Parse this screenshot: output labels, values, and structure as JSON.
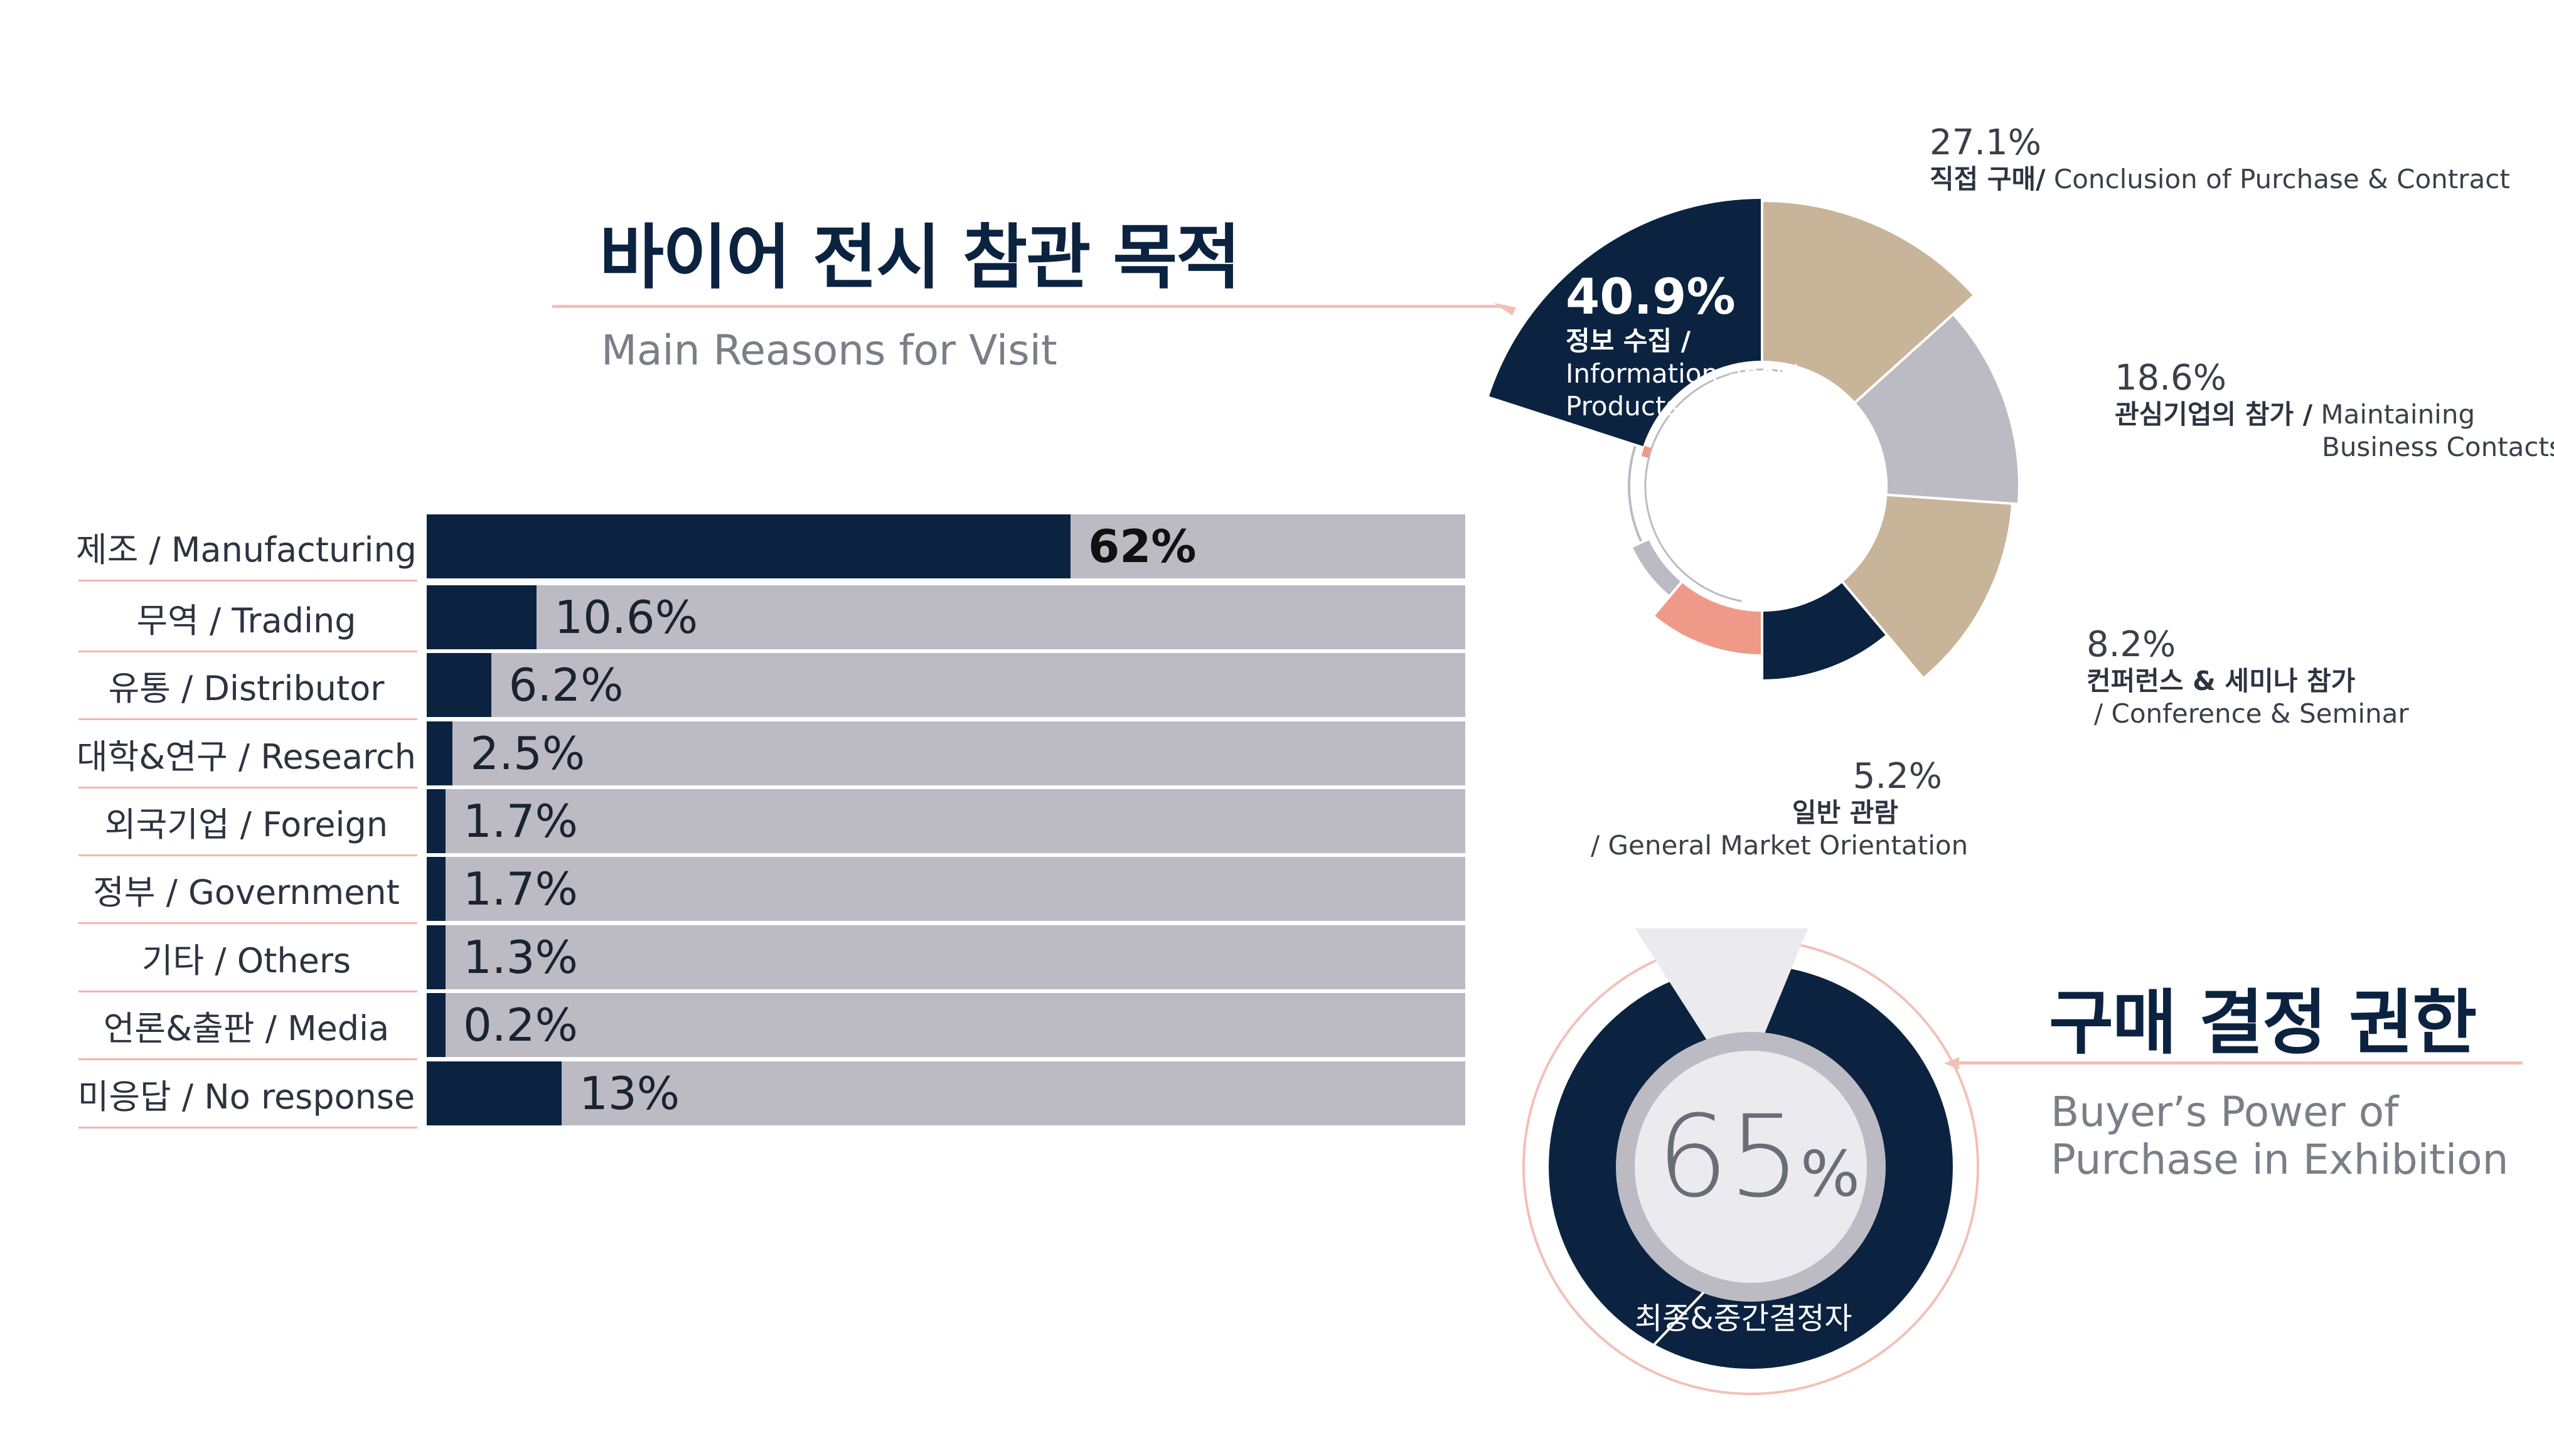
{
  "title": "바이어 전시 참관 목적",
  "subtitle": "Main Reasons for Visit",
  "bar_chart": {
    "rows": [
      {
        "label": "제조 / Manufacturing",
        "value": 62,
        "text": "62%"
      },
      {
        "label": "무역 / Trading",
        "value": 10.6,
        "text": "10.6%"
      },
      {
        "label": "유통 / Distributor",
        "value": 6.2,
        "text": "6.2%"
      },
      {
        "label": "대학&연구 / Research",
        "value": 2.5,
        "text": "2.5%"
      },
      {
        "label": "외국기업 / Foreign",
        "value": 1.7,
        "text": "1.7%"
      },
      {
        "label": "정부 / Government",
        "value": 1.7,
        "text": "1.7%"
      },
      {
        "label": "기타 / Others",
        "value": 1.3,
        "text": "1.3%"
      },
      {
        "label": "언론&출판 / Media",
        "value": 0.2,
        "text": "0.2%"
      },
      {
        "label": "미응답 / No response",
        "value": 13,
        "text": "13%"
      }
    ]
  },
  "pie": {
    "big": {
      "value": "40.9%",
      "l1": "정보 수집 /",
      "l2": "Information about",
      "l3": "Products"
    },
    "s1": {
      "value": "27.1%",
      "ko": "직접 구매/",
      "en": " Conclusion of Purchase & Contract"
    },
    "s2": {
      "value": "18.6%",
      "ko": "관심기업의 참가 /",
      "en": " Maintaining",
      "en2": "Business Contacts"
    },
    "s3": {
      "value": "8.2%",
      "ko": "컨퍼런스 & 세미나 참가",
      "en": " / Conference & Seminar"
    },
    "s4": {
      "value": "5.2%",
      "ko": "일반 관람",
      "en": "/ General Market Orientation"
    }
  },
  "buyer": {
    "title": "구매 결정 권한",
    "sub1": "Buyer’s Power of",
    "sub2": "Purchase in Exhibition",
    "percent_num": "65",
    "percent_sign": "%",
    "value": 65,
    "caption": "최종&중간결정자"
  },
  "colors": {
    "navy": "#0b2340",
    "beige": "#c8b498",
    "gray": "#bcbbc4",
    "salmon": "#ef9a88",
    "pink_line": "#f3c0b6"
  },
  "chart_data": [
    {
      "type": "bar",
      "title": "바이어 전시 참관 목적",
      "subtitle": "Main Reasons for Visit",
      "categories": [
        "제조 / Manufacturing",
        "무역 / Trading",
        "유통 / Distributor",
        "대학&연구 / Research",
        "외국기업 / Foreign",
        "정부 / Government",
        "기타 / Others",
        "언론&출판 / Media",
        "미응답 / No response"
      ],
      "values": [
        62,
        10.6,
        6.2,
        2.5,
        1.7,
        1.7,
        1.3,
        0.2,
        13
      ],
      "ylim": [
        0,
        100
      ]
    },
    {
      "type": "pie",
      "categories": [
        "정보 수집 / Information about Products",
        "직접 구매/ Conclusion of Purchase & Contract",
        "관심기업의 참가 / Maintaining Business Contacts",
        "컨퍼런스 & 세미나 참가 / Conference & Seminar",
        "일반 관람 / General Market Orientation"
      ],
      "values": [
        40.9,
        27.1,
        18.6,
        8.2,
        5.2
      ]
    },
    {
      "type": "pie",
      "title": "구매 결정 권한",
      "subtitle": "Buyer’s Power of Purchase in Exhibition",
      "categories": [
        "최종&중간결정자"
      ],
      "values": [
        65
      ]
    }
  ]
}
